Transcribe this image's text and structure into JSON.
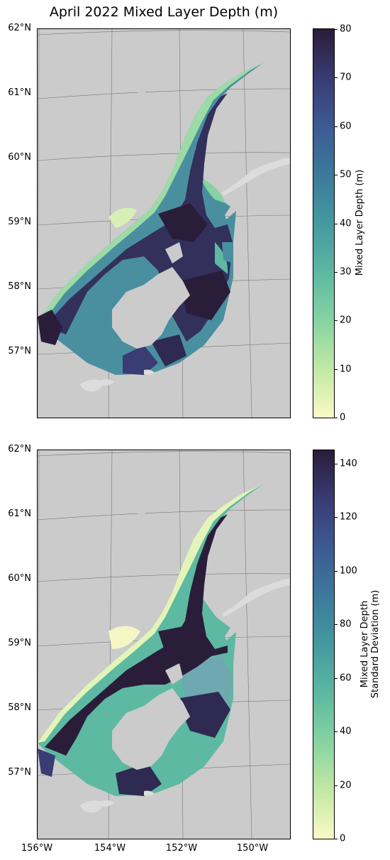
{
  "title": "April 2022 Mixed Layer Depth (m)",
  "colormap": {
    "name": "deep",
    "low": "#fbf9c6",
    "mid": "#4499a0",
    "high": "#2a1d3a",
    "land": "#cbcbcb"
  },
  "lat_labels": [
    "62°N",
    "61°N",
    "60°N",
    "59°N",
    "58°N",
    "57°N"
  ],
  "lon_labels": [
    "156°W",
    "154°W",
    "152°W",
    "150°W"
  ],
  "panels": [
    {
      "variable": "Mixed Layer Depth",
      "colorbar_label": "Mixed Layer Depth (m)",
      "colorbar_label_lines": [
        "Mixed Layer Depth (m)"
      ],
      "range": [
        0,
        80
      ],
      "ticks": [
        "0",
        "10",
        "20",
        "30",
        "40",
        "50",
        "60",
        "70",
        "80"
      ]
    },
    {
      "variable": "Mixed Layer Depth Standard Deviation",
      "colorbar_label": "Mixed Layer Depth Standard Deviation (m)",
      "colorbar_label_lines": [
        "Mixed Layer Depth",
        "Standard Deviation (m)"
      ],
      "range": [
        0,
        145
      ],
      "ticks": [
        "0",
        "20",
        "40",
        "60",
        "80",
        "100",
        "120",
        "140"
      ]
    }
  ],
  "chart_data": [
    {
      "type": "heatmap",
      "title": "April 2022 Mixed Layer Depth (m)",
      "colorbar_label": "Mixed Layer Depth (m)",
      "vmin": 0,
      "vmax": 80,
      "lat_range": [
        56,
        62
      ],
      "lon_range": [
        -156,
        -149
      ]
    },
    {
      "type": "heatmap",
      "colorbar_label": "Mixed Layer Depth Standard Deviation (m)",
      "vmin": 0,
      "vmax": 145,
      "lat_range": [
        56,
        62
      ],
      "lon_range": [
        -156,
        -149
      ]
    }
  ]
}
